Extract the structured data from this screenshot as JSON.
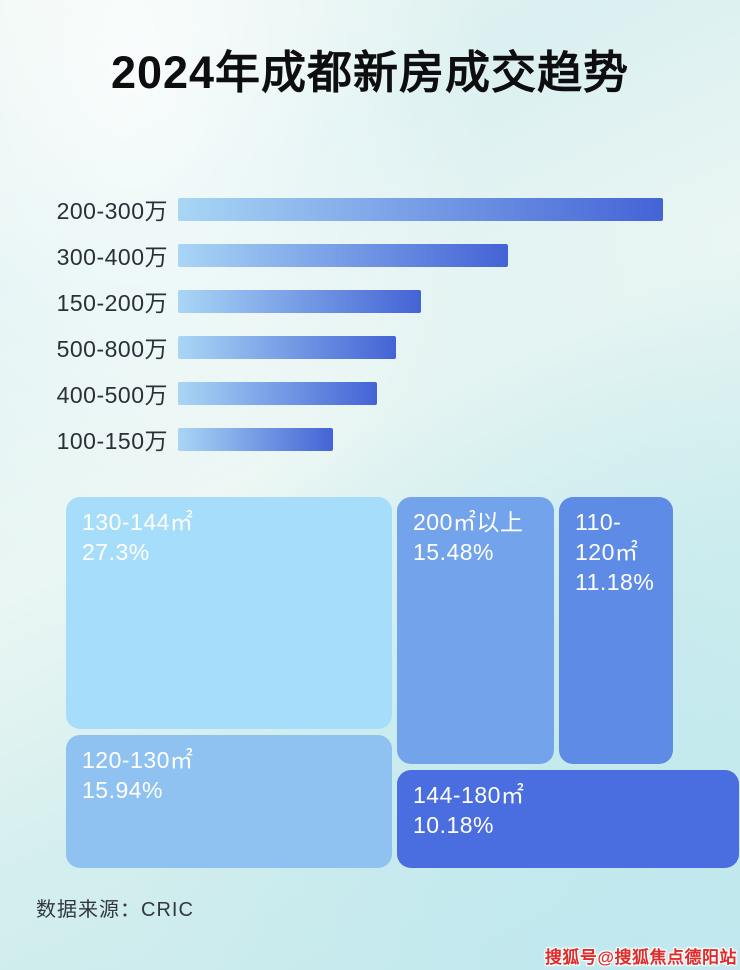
{
  "page": {
    "title": "2024年成都新房成交趋势",
    "source": "数据来源：CRIC",
    "watermark": "搜狐号@搜狐焦点德阳站"
  },
  "colors": {
    "title_text": "#0e0e10",
    "bar_label_text": "#2b2f36",
    "bar_gradient_start": "#a9d6f5",
    "bar_gradient_end": "#4463d6",
    "treemap_text": "#ffffff",
    "source_text": "#33383d",
    "watermark_red": "#e02b2b",
    "background_top_left": "#e7f4ef",
    "background_bottom_right": "#c6e9ec"
  },
  "chart_data": [
    {
      "type": "bar",
      "orientation": "horizontal",
      "categories": [
        "200-300万",
        "300-400万",
        "150-200万",
        "500-800万",
        "400-500万",
        "100-150万"
      ],
      "values": [
        100,
        68,
        50,
        45,
        41,
        32
      ],
      "value_unit": "relative bar length, % of longest bar (no numeric labels shown in image)",
      "value_labels_shown": false,
      "axis_shown": false,
      "grid": false,
      "legend": "none"
    },
    {
      "type": "treemap",
      "items": [
        {
          "label": "130-144㎡",
          "value_pct": 27.3,
          "display": "27.3%",
          "color": "#a6ddfa"
        },
        {
          "label": "120-130㎡",
          "value_pct": 15.94,
          "display": "15.94%",
          "color": "#8fc2f0"
        },
        {
          "label": "200㎡以上",
          "value_pct": 15.48,
          "display": "15.48%",
          "color": "#72a3eb"
        },
        {
          "label": "110-120㎡",
          "value_pct": 11.18,
          "display": "11.18%",
          "color": "#5e8be6"
        },
        {
          "label": "144-180㎡",
          "value_pct": 10.18,
          "display": "10.18%",
          "color": "#4a6de0"
        }
      ],
      "legend": "none"
    }
  ]
}
